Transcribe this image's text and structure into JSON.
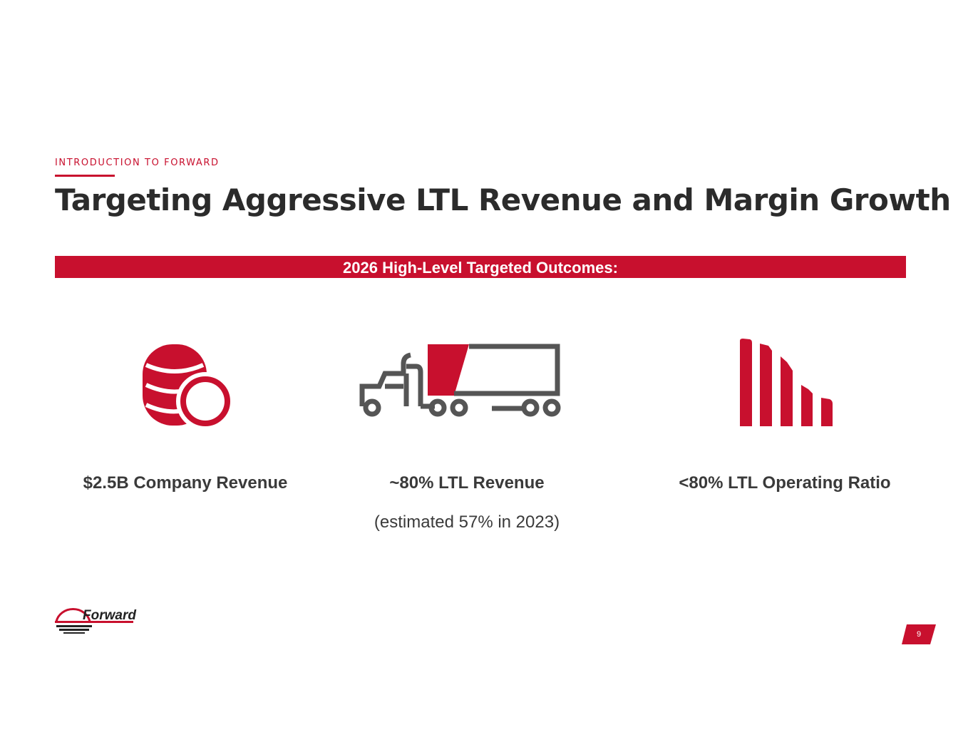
{
  "section": "INTRODUCTION TO FORWARD",
  "title": "Targeting Aggressive LTL Revenue and Margin Growth",
  "banner": "2026 High-Level Targeted Outcomes:",
  "outcomes": [
    {
      "icon": "coins-icon",
      "label": "$2.5B Company Revenue"
    },
    {
      "icon": "truck-icon",
      "label": "~80% LTL Revenue",
      "note": "(estimated 57% in 2023)"
    },
    {
      "icon": "declining-bars-icon",
      "label": "<80% LTL Operating Ratio"
    }
  ],
  "logo": "Forward",
  "page_number": "9",
  "colors": {
    "accent": "#c8102e",
    "dark": "#2b2b2b",
    "icon_gray": "#555555"
  }
}
